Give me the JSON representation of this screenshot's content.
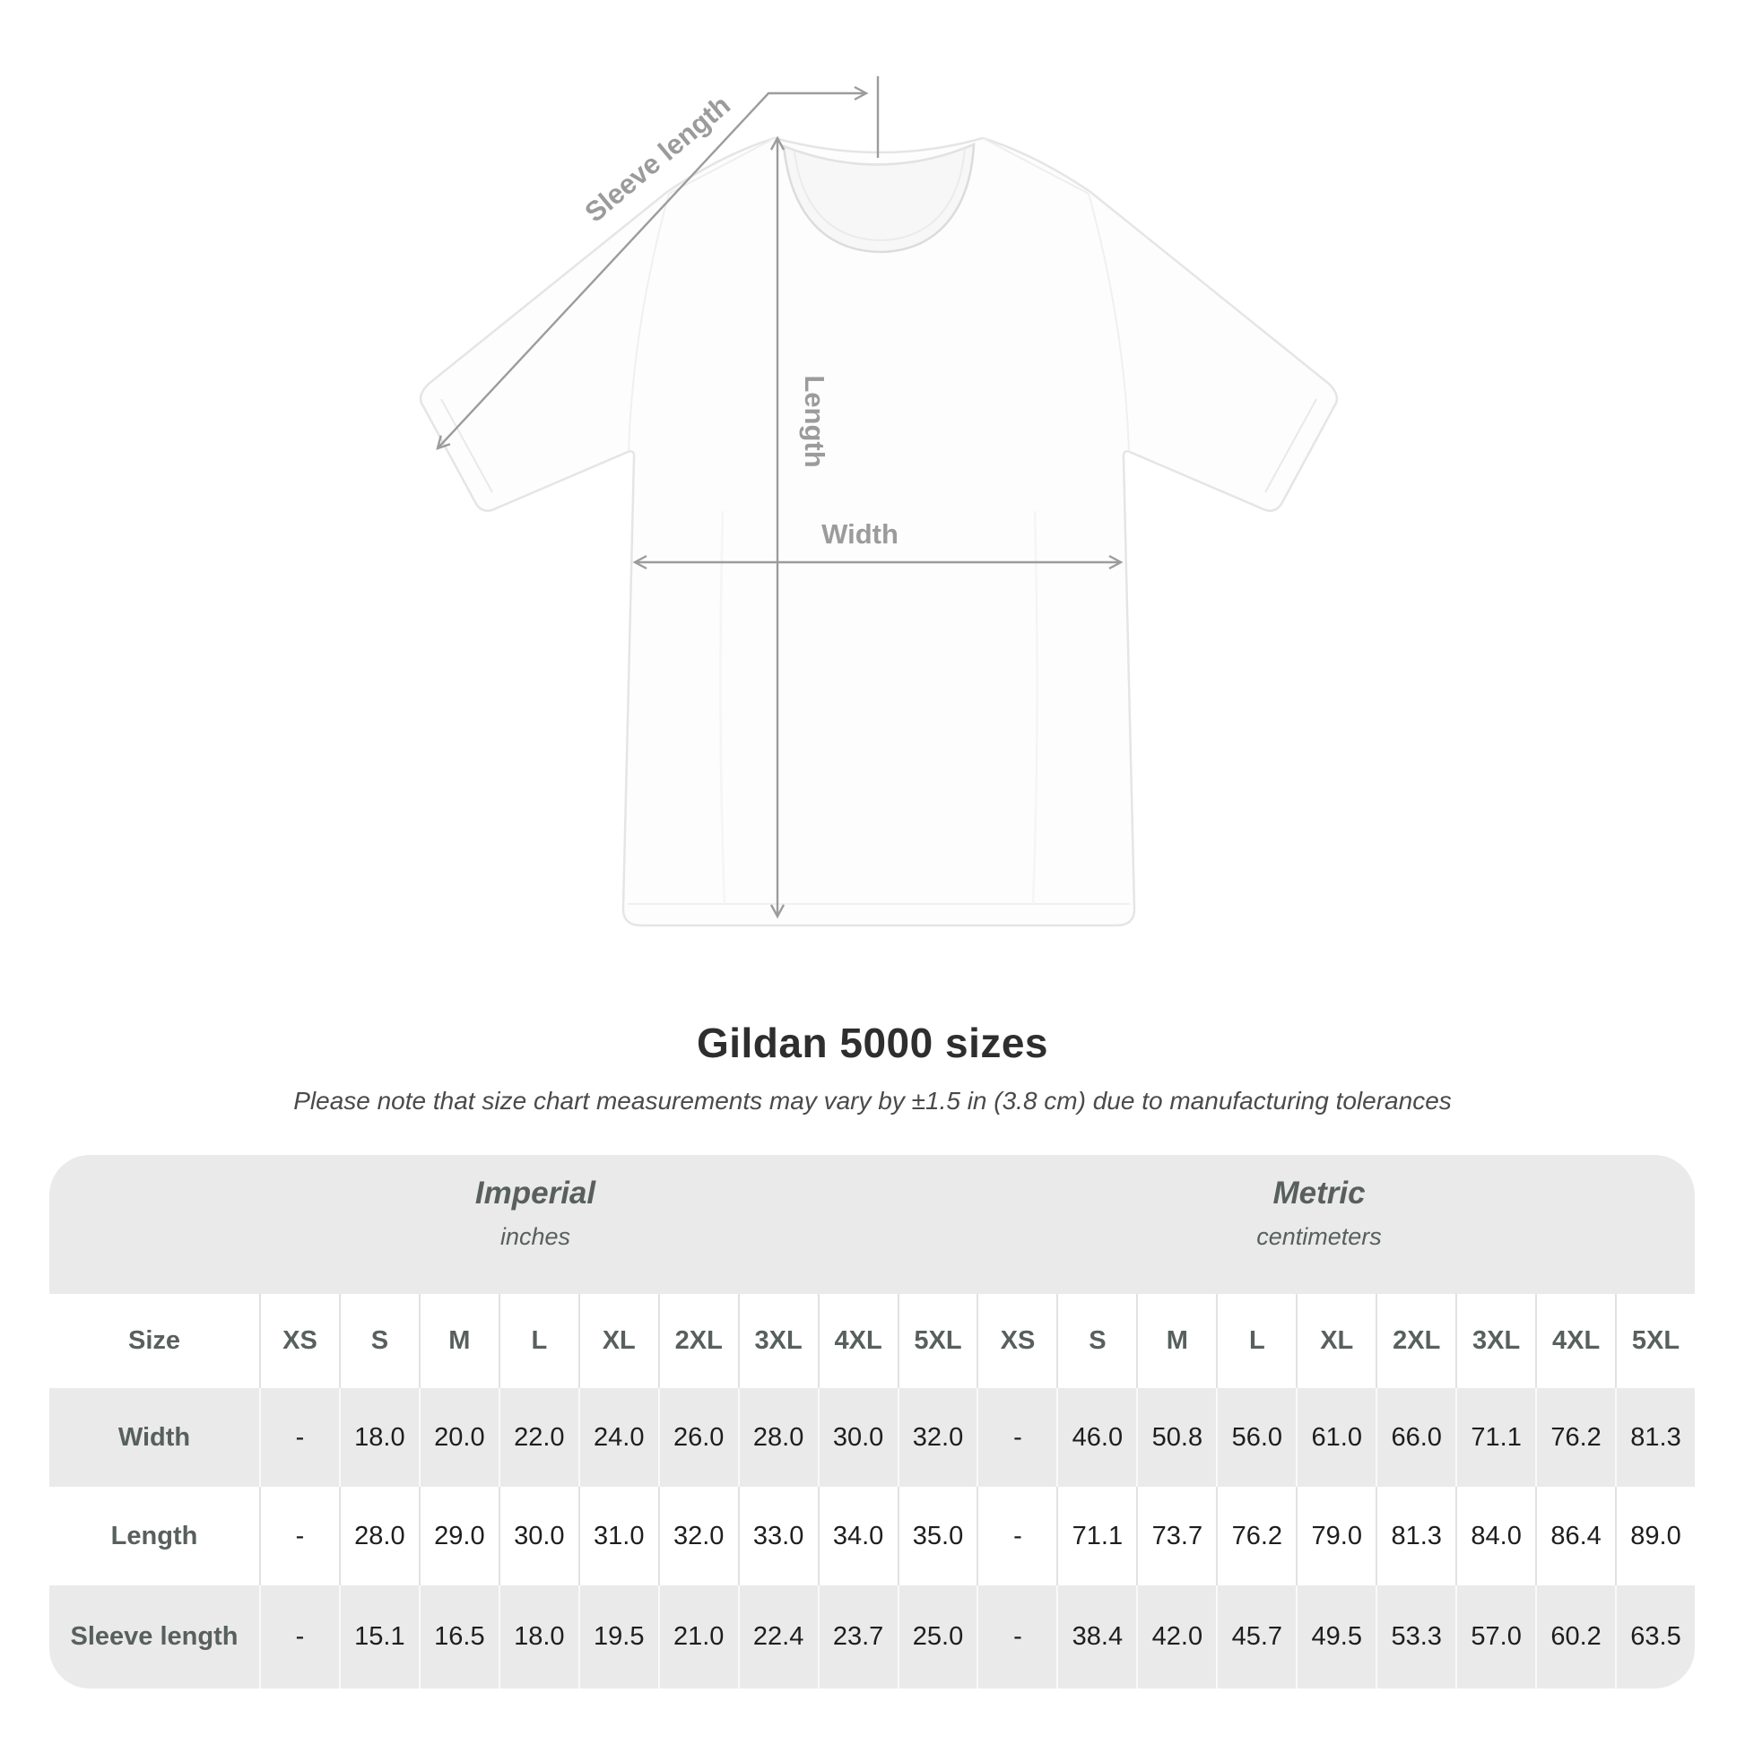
{
  "diagram": {
    "sleeve_length_label": "Sleeve length",
    "length_label": "Length",
    "width_label": "Width"
  },
  "colors": {
    "table_band_gray": "#eaeaea",
    "table_row_gray": "#eaeaea",
    "header_text": "#58605e",
    "data_text": "#1e1e1e",
    "diagram_annotation_gray": "#9c9c9c"
  },
  "chart_data": {
    "type": "table",
    "title": "Gildan 5000 sizes",
    "subtitle": "Please note that size chart measurements may vary by ±1.5 in (3.8 cm) due to manufacturing tolerances",
    "size_col_label": "Size",
    "unit_groups": [
      {
        "name": "Imperial",
        "unit": "inches"
      },
      {
        "name": "Metric",
        "unit": "centimeters"
      }
    ],
    "sizes": [
      "XS",
      "S",
      "M",
      "L",
      "XL",
      "2XL",
      "3XL",
      "4XL",
      "5XL"
    ],
    "rows": [
      {
        "label": "Width",
        "imperial": [
          "-",
          "18.0",
          "20.0",
          "22.0",
          "24.0",
          "26.0",
          "28.0",
          "30.0",
          "32.0"
        ],
        "metric": [
          "-",
          "46.0",
          "50.8",
          "56.0",
          "61.0",
          "66.0",
          "71.1",
          "76.2",
          "81.3"
        ]
      },
      {
        "label": "Length",
        "imperial": [
          "-",
          "28.0",
          "29.0",
          "30.0",
          "31.0",
          "32.0",
          "33.0",
          "34.0",
          "35.0"
        ],
        "metric": [
          "-",
          "71.1",
          "73.7",
          "76.2",
          "79.0",
          "81.3",
          "84.0",
          "86.4",
          "89.0"
        ]
      },
      {
        "label": "Sleeve length",
        "imperial": [
          "-",
          "15.1",
          "16.5",
          "18.0",
          "19.5",
          "21.0",
          "22.4",
          "23.7",
          "25.0"
        ],
        "metric": [
          "-",
          "38.4",
          "42.0",
          "45.7",
          "49.5",
          "53.3",
          "57.0",
          "60.2",
          "63.5"
        ]
      }
    ]
  }
}
